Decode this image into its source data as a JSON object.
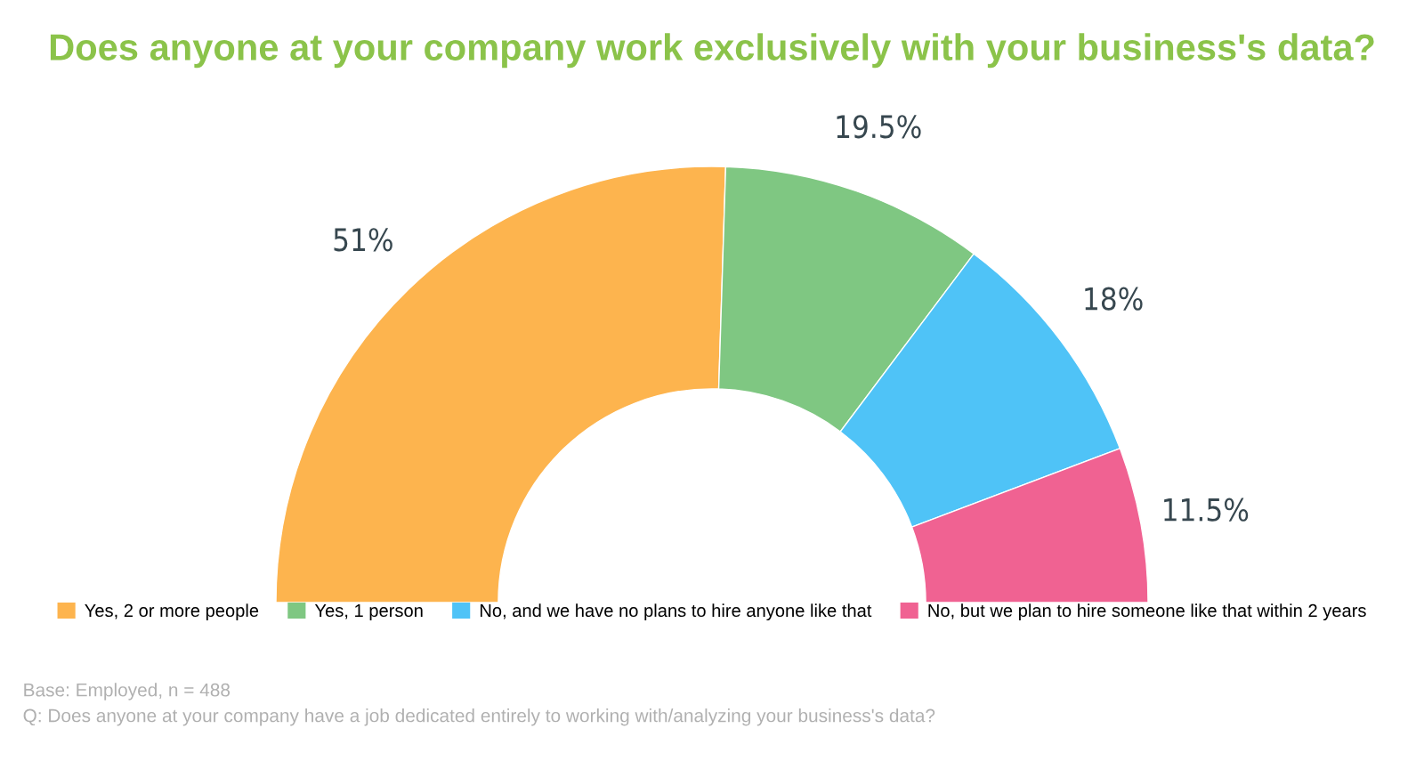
{
  "chart_data": {
    "type": "donut",
    "title": "Does anyone at your company work exclusively with your business's data?",
    "categories": [
      "Yes, 2 or more people",
      "Yes, 1 person",
      "No, and we have no plans to hire anyone like that",
      "No, but we plan to hire someone like that within 2 years"
    ],
    "values": [
      51,
      19.5,
      18,
      11.5
    ],
    "colors": [
      "#fdb44e",
      "#7fc782",
      "#4fc3f7",
      "#f06292"
    ],
    "value_labels": [
      "51%",
      "19.5%",
      "18%",
      "11.5%"
    ],
    "legend": "bottom",
    "annotations": [
      "Base: Employed, n = 488",
      "Q: Does anyone at your company have a job dedicated entirely to working with/analyzing your business's data?"
    ]
  }
}
